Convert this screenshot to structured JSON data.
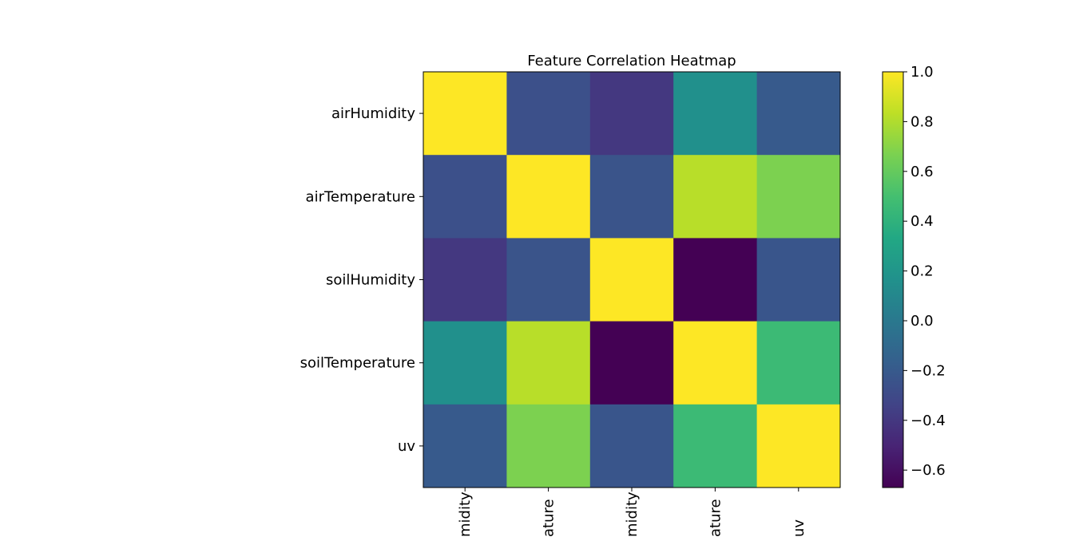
{
  "chart_data": {
    "type": "heatmap",
    "title": "Feature Correlation Heatmap",
    "row_labels": [
      "airHumidity",
      "airTemperature",
      "soilHumidity",
      "soilTemperature",
      "uv"
    ],
    "col_labels": [
      "airHumidity",
      "airTemperature",
      "soilHumidity",
      "soilTemperature",
      "uv"
    ],
    "col_labels_visible": [
      "midity",
      "ature",
      "midity",
      "ature",
      "uv"
    ],
    "values": [
      [
        1.0,
        -0.26,
        -0.4,
        0.16,
        -0.2
      ],
      [
        -0.26,
        1.0,
        -0.24,
        0.82,
        0.67
      ],
      [
        -0.4,
        -0.24,
        1.0,
        -0.67,
        -0.23
      ],
      [
        0.16,
        0.82,
        -0.67,
        1.0,
        0.46
      ],
      [
        -0.2,
        0.67,
        -0.23,
        0.46,
        1.0
      ]
    ],
    "colormap": "viridis",
    "colorbar": {
      "min": -0.67,
      "max": 1.0,
      "ticks": [
        1.0,
        0.8,
        0.6,
        0.4,
        0.2,
        0.0,
        -0.2,
        -0.4,
        -0.6
      ],
      "tick_labels": [
        "1.0",
        "0.8",
        "0.6",
        "0.4",
        "0.2",
        "0.0",
        "−0.2",
        "−0.4",
        "−0.6"
      ]
    },
    "grid": false
  }
}
